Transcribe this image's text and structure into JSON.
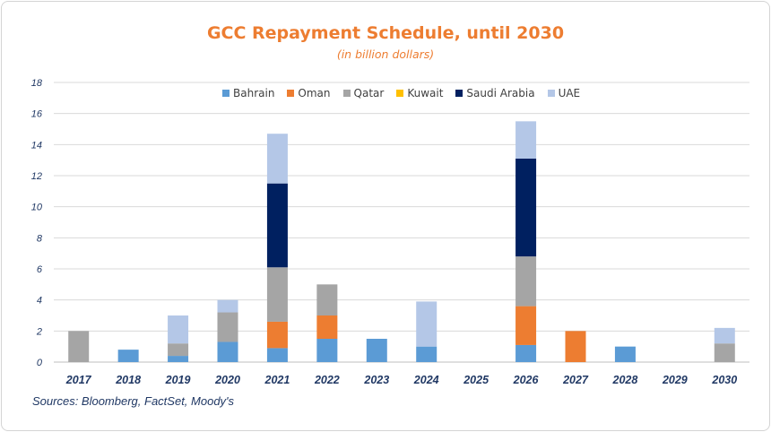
{
  "chart_data": {
    "type": "bar",
    "stacked": true,
    "title": "GCC Repayment Schedule, until 2030",
    "subtitle": "(in billion dollars)",
    "categories": [
      "2017",
      "2018",
      "2019",
      "2020",
      "2021",
      "2022",
      "2023",
      "2024",
      "2025",
      "2026",
      "2027",
      "2028",
      "2029",
      "2030"
    ],
    "ylim": [
      0,
      18
    ],
    "yticks": [
      0,
      2,
      4,
      6,
      8,
      10,
      12,
      14,
      16,
      18
    ],
    "grid": true,
    "legend_position": "top-center",
    "series": [
      {
        "name": "Bahrain",
        "color": "#5b9bd5",
        "values": [
          0,
          0.8,
          0.4,
          1.3,
          0.9,
          1.5,
          1.5,
          1.0,
          0,
          1.1,
          0,
          1.0,
          0,
          0
        ]
      },
      {
        "name": "Oman",
        "color": "#ed7d31",
        "values": [
          0,
          0,
          0,
          0,
          1.7,
          1.5,
          0,
          0,
          0,
          2.5,
          2.0,
          0,
          0,
          0
        ]
      },
      {
        "name": "Qatar",
        "color": "#a5a5a5",
        "values": [
          2.0,
          0,
          0.8,
          1.9,
          3.5,
          2.0,
          0,
          0,
          0,
          3.2,
          0,
          0,
          0,
          1.2
        ]
      },
      {
        "name": "Kuwait",
        "color": "#ffc000",
        "values": [
          0,
          0,
          0,
          0,
          0,
          0,
          0,
          0,
          0,
          0,
          0,
          0,
          0,
          0
        ]
      },
      {
        "name": "Saudi Arabia",
        "color": "#002060",
        "values": [
          0,
          0,
          0,
          0,
          5.4,
          0,
          0,
          0,
          0,
          6.3,
          0,
          0,
          0,
          0
        ]
      },
      {
        "name": "UAE",
        "color": "#b4c7e7",
        "values": [
          0,
          0,
          1.8,
          0.8,
          3.2,
          0,
          0,
          2.9,
          0,
          2.4,
          0,
          0,
          0,
          1.0
        ]
      }
    ]
  },
  "source": "Sources: Bloomberg, FactSet, Moody's"
}
